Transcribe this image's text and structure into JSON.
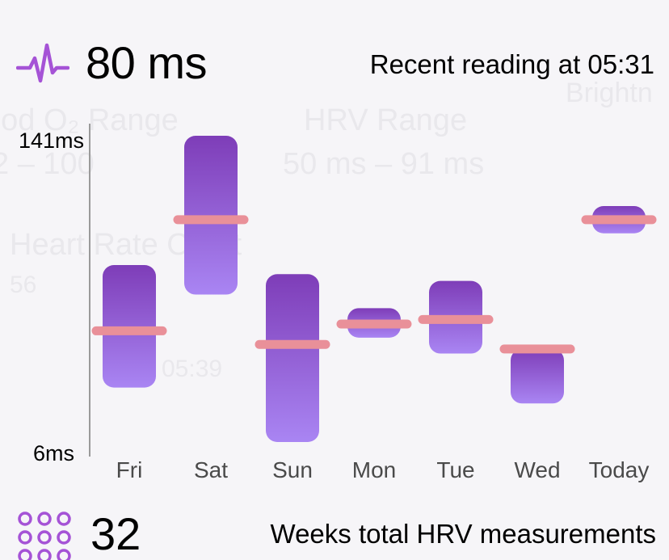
{
  "header": {
    "hrv_value": "80 ms",
    "recent_reading": "Recent reading at 05:31",
    "icon": "pulse-icon"
  },
  "background_ghost": {
    "blood_range": "ood O₂ Range",
    "blood_value": "2 – 100",
    "hrv_range": "HRV Range",
    "hrv_range_value": "50 ms – 91 ms",
    "heart_rate_chart": "Heart Rate Chart",
    "heart_rate_value": "56",
    "time": "05:39",
    "brightness": "Brightn"
  },
  "chart_data": {
    "type": "bar",
    "y_axis_labels": [
      "141ms",
      "6ms"
    ],
    "ylim": [
      6,
      141
    ],
    "categories": [
      "Fri",
      "Sat",
      "Sun",
      "Mon",
      "Tue",
      "Wed",
      "Today"
    ],
    "ranges": [
      [
        30,
        84
      ],
      [
        71,
        141
      ],
      [
        6,
        80
      ],
      [
        52,
        65
      ],
      [
        45,
        77
      ],
      [
        23,
        47
      ],
      [
        98,
        110
      ]
    ],
    "averages": [
      55,
      104,
      49,
      58,
      60,
      47,
      104
    ],
    "colors": {
      "bar_top": "#7e3db8",
      "bar_bottom": "#a985f3",
      "average": "#e99099",
      "axis": "#9a9a9a"
    }
  },
  "footer": {
    "weeks_count": "32",
    "weeks_label": "Weeks total HRV measurements",
    "icon": "grid-icon"
  }
}
